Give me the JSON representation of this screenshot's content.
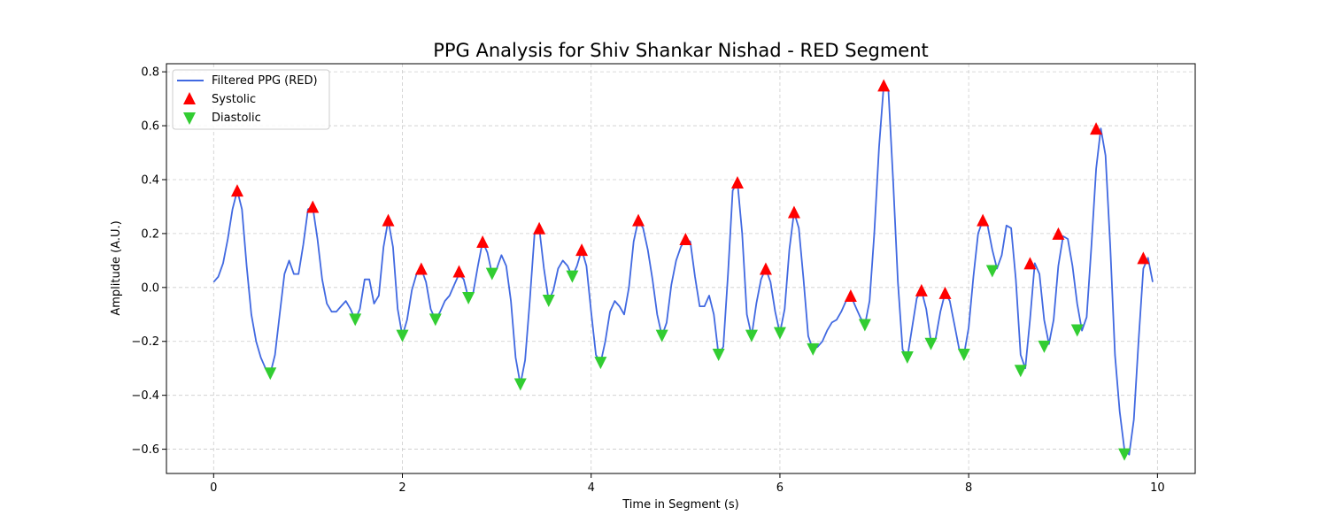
{
  "chart_data": {
    "type": "line",
    "title": "PPG Analysis for Shiv Shankar Nishad - RED Segment",
    "xlabel": "Time in Segment (s)",
    "ylabel": "Amplitude (A.U.)",
    "xlim": [
      -0.5,
      10.4
    ],
    "ylim": [
      -0.69,
      0.83
    ],
    "xticks": [
      0,
      2,
      4,
      6,
      8,
      10
    ],
    "xtick_labels": [
      "0",
      "2",
      "4",
      "6",
      "8",
      "10"
    ],
    "yticks": [
      -0.6,
      -0.4,
      -0.2,
      0.0,
      0.2,
      0.4,
      0.6,
      0.8
    ],
    "ytick_labels": [
      "−0.6",
      "−0.4",
      "−0.2",
      "0.0",
      "0.2",
      "0.4",
      "0.6",
      "0.8"
    ],
    "grid": true,
    "legend_position": "top-left",
    "legend": [
      "Filtered PPG (RED)",
      "Systolic",
      "Diastolic"
    ],
    "colors": {
      "line": "#4169e1",
      "systolic": "#ff0000",
      "diastolic": "#32cd32",
      "grid": "#cccccc"
    },
    "series": [
      {
        "name": "Filtered PPG (RED)",
        "kind": "line",
        "points": [
          [
            0.0,
            0.02
          ],
          [
            0.05,
            0.04
          ],
          [
            0.1,
            0.09
          ],
          [
            0.15,
            0.18
          ],
          [
            0.2,
            0.29
          ],
          [
            0.25,
            0.36
          ],
          [
            0.3,
            0.29
          ],
          [
            0.35,
            0.08
          ],
          [
            0.4,
            -0.1
          ],
          [
            0.45,
            -0.2
          ],
          [
            0.5,
            -0.26
          ],
          [
            0.55,
            -0.3
          ],
          [
            0.6,
            -0.32
          ],
          [
            0.65,
            -0.25
          ],
          [
            0.7,
            -0.1
          ],
          [
            0.75,
            0.05
          ],
          [
            0.8,
            0.1
          ],
          [
            0.85,
            0.05
          ],
          [
            0.9,
            0.05
          ],
          [
            0.95,
            0.16
          ],
          [
            1.0,
            0.29
          ],
          [
            1.05,
            0.3
          ],
          [
            1.1,
            0.18
          ],
          [
            1.15,
            0.03
          ],
          [
            1.2,
            -0.06
          ],
          [
            1.25,
            -0.09
          ],
          [
            1.3,
            -0.09
          ],
          [
            1.35,
            -0.07
          ],
          [
            1.4,
            -0.05
          ],
          [
            1.45,
            -0.08
          ],
          [
            1.5,
            -0.12
          ],
          [
            1.55,
            -0.08
          ],
          [
            1.6,
            0.03
          ],
          [
            1.65,
            0.03
          ],
          [
            1.7,
            -0.06
          ],
          [
            1.75,
            -0.03
          ],
          [
            1.8,
            0.15
          ],
          [
            1.85,
            0.25
          ],
          [
            1.9,
            0.15
          ],
          [
            1.95,
            -0.08
          ],
          [
            2.0,
            -0.18
          ],
          [
            2.05,
            -0.12
          ],
          [
            2.1,
            -0.01
          ],
          [
            2.15,
            0.05
          ],
          [
            2.2,
            0.07
          ],
          [
            2.25,
            0.02
          ],
          [
            2.3,
            -0.08
          ],
          [
            2.35,
            -0.12
          ],
          [
            2.4,
            -0.09
          ],
          [
            2.45,
            -0.05
          ],
          [
            2.5,
            -0.03
          ],
          [
            2.55,
            0.01
          ],
          [
            2.6,
            0.05
          ],
          [
            2.65,
            0.03
          ],
          [
            2.7,
            -0.04
          ],
          [
            2.75,
            -0.02
          ],
          [
            2.8,
            0.08
          ],
          [
            2.85,
            0.17
          ],
          [
            2.9,
            0.13
          ],
          [
            2.95,
            0.05
          ],
          [
            3.0,
            0.07
          ],
          [
            3.05,
            0.12
          ],
          [
            3.1,
            0.08
          ],
          [
            3.15,
            -0.05
          ],
          [
            3.2,
            -0.26
          ],
          [
            3.25,
            -0.36
          ],
          [
            3.3,
            -0.27
          ],
          [
            3.35,
            -0.05
          ],
          [
            3.4,
            0.2
          ],
          [
            3.45,
            0.22
          ],
          [
            3.5,
            0.07
          ],
          [
            3.55,
            -0.05
          ],
          [
            3.6,
            -0.01
          ],
          [
            3.65,
            0.07
          ],
          [
            3.7,
            0.1
          ],
          [
            3.75,
            0.08
          ],
          [
            3.8,
            0.04
          ],
          [
            3.85,
            0.08
          ],
          [
            3.9,
            0.14
          ],
          [
            3.95,
            0.08
          ],
          [
            4.0,
            -0.09
          ],
          [
            4.05,
            -0.25
          ],
          [
            4.1,
            -0.28
          ],
          [
            4.15,
            -0.2
          ],
          [
            4.2,
            -0.09
          ],
          [
            4.25,
            -0.05
          ],
          [
            4.3,
            -0.07
          ],
          [
            4.35,
            -0.1
          ],
          [
            4.4,
            0.0
          ],
          [
            4.45,
            0.17
          ],
          [
            4.5,
            0.25
          ],
          [
            4.55,
            0.22
          ],
          [
            4.6,
            0.14
          ],
          [
            4.65,
            0.03
          ],
          [
            4.7,
            -0.1
          ],
          [
            4.75,
            -0.18
          ],
          [
            4.8,
            -0.13
          ],
          [
            4.85,
            0.01
          ],
          [
            4.9,
            0.1
          ],
          [
            4.95,
            0.15
          ],
          [
            5.0,
            0.18
          ],
          [
            5.05,
            0.17
          ],
          [
            5.1,
            0.04
          ],
          [
            5.15,
            -0.07
          ],
          [
            5.2,
            -0.07
          ],
          [
            5.25,
            -0.03
          ],
          [
            5.3,
            -0.1
          ],
          [
            5.35,
            -0.25
          ],
          [
            5.4,
            -0.22
          ],
          [
            5.45,
            0.05
          ],
          [
            5.5,
            0.36
          ],
          [
            5.55,
            0.39
          ],
          [
            5.6,
            0.2
          ],
          [
            5.65,
            -0.1
          ],
          [
            5.7,
            -0.18
          ],
          [
            5.75,
            -0.06
          ],
          [
            5.8,
            0.03
          ],
          [
            5.85,
            0.07
          ],
          [
            5.9,
            0.02
          ],
          [
            5.95,
            -0.09
          ],
          [
            6.0,
            -0.17
          ],
          [
            6.05,
            -0.08
          ],
          [
            6.1,
            0.14
          ],
          [
            6.15,
            0.28
          ],
          [
            6.2,
            0.22
          ],
          [
            6.25,
            0.03
          ],
          [
            6.3,
            -0.18
          ],
          [
            6.35,
            -0.23
          ],
          [
            6.4,
            -0.22
          ],
          [
            6.45,
            -0.2
          ],
          [
            6.5,
            -0.16
          ],
          [
            6.55,
            -0.13
          ],
          [
            6.6,
            -0.12
          ],
          [
            6.65,
            -0.09
          ],
          [
            6.7,
            -0.05
          ],
          [
            6.75,
            -0.03
          ],
          [
            6.8,
            -0.07
          ],
          [
            6.85,
            -0.11
          ],
          [
            6.9,
            -0.14
          ],
          [
            6.95,
            -0.05
          ],
          [
            7.0,
            0.2
          ],
          [
            7.05,
            0.52
          ],
          [
            7.1,
            0.75
          ],
          [
            7.15,
            0.73
          ],
          [
            7.2,
            0.39
          ],
          [
            7.25,
            0.02
          ],
          [
            7.3,
            -0.23
          ],
          [
            7.35,
            -0.26
          ],
          [
            7.4,
            -0.15
          ],
          [
            7.45,
            -0.04
          ],
          [
            7.5,
            -0.01
          ],
          [
            7.55,
            -0.08
          ],
          [
            7.6,
            -0.2
          ],
          [
            7.65,
            -0.19
          ],
          [
            7.7,
            -0.09
          ],
          [
            7.75,
            -0.02
          ],
          [
            7.8,
            -0.05
          ],
          [
            7.85,
            -0.14
          ],
          [
            7.9,
            -0.23
          ],
          [
            7.95,
            -0.25
          ],
          [
            8.0,
            -0.15
          ],
          [
            8.05,
            0.04
          ],
          [
            8.1,
            0.2
          ],
          [
            8.15,
            0.25
          ],
          [
            8.2,
            0.23
          ],
          [
            8.25,
            0.14
          ],
          [
            8.3,
            0.07
          ],
          [
            8.35,
            0.12
          ],
          [
            8.4,
            0.23
          ],
          [
            8.45,
            0.22
          ],
          [
            8.5,
            0.03
          ],
          [
            8.55,
            -0.25
          ],
          [
            8.6,
            -0.3
          ],
          [
            8.65,
            -0.12
          ],
          [
            8.7,
            0.09
          ],
          [
            8.75,
            0.05
          ],
          [
            8.8,
            -0.12
          ],
          [
            8.85,
            -0.21
          ],
          [
            8.9,
            -0.12
          ],
          [
            8.95,
            0.08
          ],
          [
            9.0,
            0.19
          ],
          [
            9.05,
            0.18
          ],
          [
            9.1,
            0.08
          ],
          [
            9.15,
            -0.06
          ],
          [
            9.2,
            -0.16
          ],
          [
            9.25,
            -0.11
          ],
          [
            9.3,
            0.15
          ],
          [
            9.35,
            0.44
          ],
          [
            9.4,
            0.59
          ],
          [
            9.45,
            0.49
          ],
          [
            9.5,
            0.15
          ],
          [
            9.55,
            -0.25
          ],
          [
            9.6,
            -0.46
          ],
          [
            9.65,
            -0.6
          ],
          [
            9.7,
            -0.62
          ],
          [
            9.75,
            -0.49
          ],
          [
            9.8,
            -0.2
          ],
          [
            9.85,
            0.07
          ],
          [
            9.9,
            0.11
          ],
          [
            9.95,
            0.02
          ]
        ]
      },
      {
        "name": "Systolic",
        "kind": "marker-up",
        "points": [
          [
            0.25,
            0.36
          ],
          [
            1.05,
            0.3
          ],
          [
            1.85,
            0.25
          ],
          [
            2.2,
            0.07
          ],
          [
            2.6,
            0.06
          ],
          [
            2.85,
            0.17
          ],
          [
            3.45,
            0.22
          ],
          [
            3.9,
            0.14
          ],
          [
            4.5,
            0.25
          ],
          [
            5.0,
            0.18
          ],
          [
            5.55,
            0.39
          ],
          [
            5.85,
            0.07
          ],
          [
            6.15,
            0.28
          ],
          [
            6.75,
            -0.03
          ],
          [
            7.1,
            0.75
          ],
          [
            7.5,
            -0.01
          ],
          [
            7.75,
            -0.02
          ],
          [
            8.15,
            0.25
          ],
          [
            8.65,
            0.09
          ],
          [
            8.95,
            0.2
          ],
          [
            9.35,
            0.59
          ],
          [
            9.85,
            0.11
          ]
        ]
      },
      {
        "name": "Diastolic",
        "kind": "marker-down",
        "points": [
          [
            0.6,
            -0.32
          ],
          [
            1.5,
            -0.12
          ],
          [
            2.0,
            -0.18
          ],
          [
            2.35,
            -0.12
          ],
          [
            2.7,
            -0.04
          ],
          [
            2.95,
            0.05
          ],
          [
            3.25,
            -0.36
          ],
          [
            3.55,
            -0.05
          ],
          [
            3.8,
            0.04
          ],
          [
            4.1,
            -0.28
          ],
          [
            4.75,
            -0.18
          ],
          [
            5.35,
            -0.25
          ],
          [
            5.7,
            -0.18
          ],
          [
            6.0,
            -0.17
          ],
          [
            6.35,
            -0.23
          ],
          [
            6.9,
            -0.14
          ],
          [
            7.35,
            -0.26
          ],
          [
            7.6,
            -0.21
          ],
          [
            7.95,
            -0.25
          ],
          [
            8.25,
            0.06
          ],
          [
            8.55,
            -0.31
          ],
          [
            8.8,
            -0.22
          ],
          [
            9.15,
            -0.16
          ],
          [
            9.65,
            -0.62
          ]
        ]
      }
    ]
  }
}
